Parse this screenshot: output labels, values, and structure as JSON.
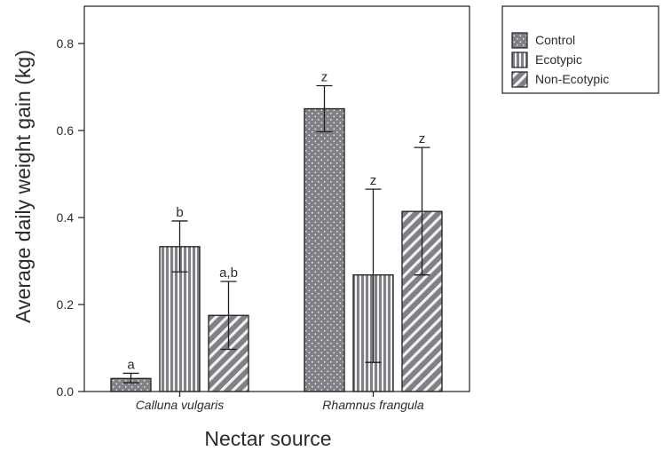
{
  "chart_data": {
    "type": "bar",
    "xlabel": "Nectar source",
    "ylabel": "Average daily weight gain (kg)",
    "ylim": [
      0,
      0.88
    ],
    "yticks": [
      "0.0",
      "0.2",
      "0.4",
      "0.6",
      "0.8"
    ],
    "ytick_values": [
      0,
      0.2,
      0.4,
      0.6,
      0.8
    ],
    "categories": [
      "Calluna vulgaris",
      "Rhamnus frangula"
    ],
    "series": [
      {
        "name": "Control",
        "pattern": "dots",
        "values": [
          0.03,
          0.65
        ],
        "err_low": [
          0.02,
          0.597
        ],
        "err_high": [
          0.042,
          0.703
        ],
        "labels": [
          "a",
          "z"
        ]
      },
      {
        "name": "Ecotypic",
        "pattern": "vertical",
        "values": [
          0.333,
          0.268
        ],
        "err_low": [
          0.275,
          0.067
        ],
        "err_high": [
          0.392,
          0.465
        ],
        "labels": [
          "b",
          "z"
        ]
      },
      {
        "name": "Non-Ecotypic",
        "pattern": "diagonal",
        "values": [
          0.175,
          0.414
        ],
        "err_low": [
          0.097,
          0.268
        ],
        "err_high": [
          0.253,
          0.561
        ],
        "labels": [
          "a,b",
          "z"
        ]
      }
    ],
    "legend_position": "top-right, outside",
    "grid": false
  },
  "colors": {
    "bar_fill": "#7f8186",
    "stroke": "#1e1e1e",
    "text": "#2b2b2b"
  }
}
